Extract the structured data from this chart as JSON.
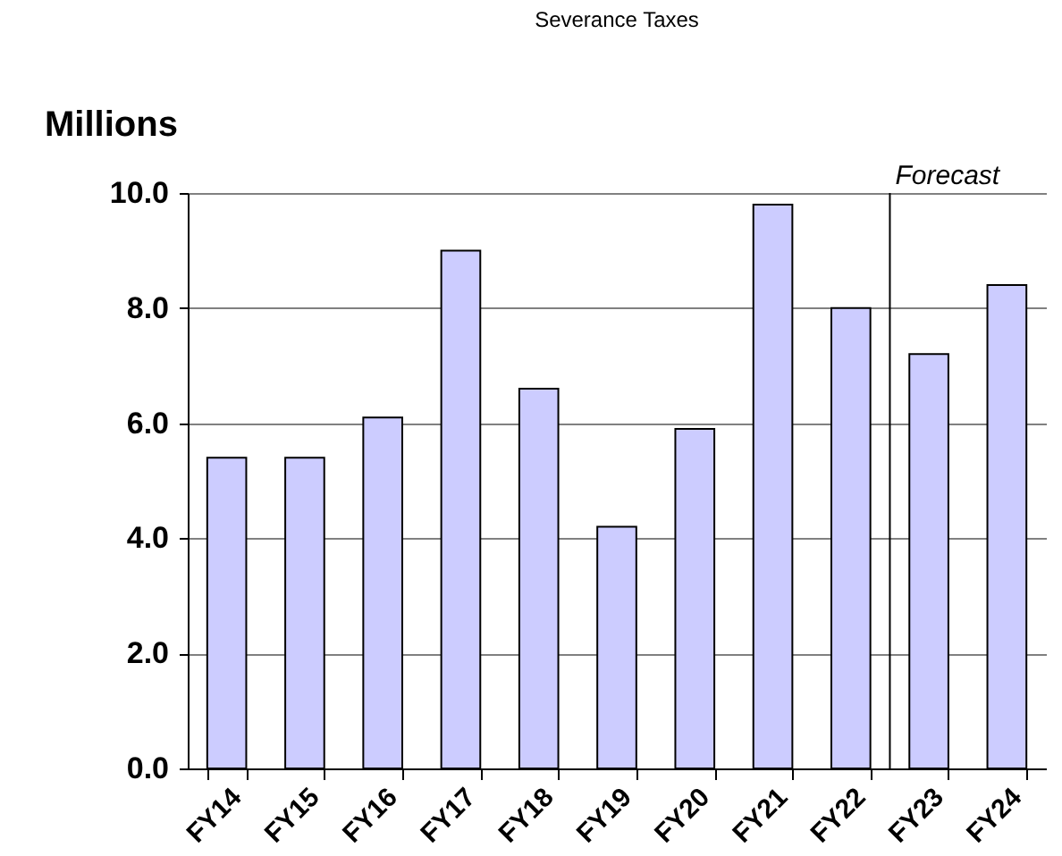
{
  "chart_data": {
    "type": "bar",
    "title": "Severance Taxes",
    "ylabel": "Millions",
    "categories": [
      "FY14",
      "FY15",
      "FY16",
      "FY17",
      "FY18",
      "FY19",
      "FY20",
      "FY21",
      "FY22",
      "FY23",
      "FY24"
    ],
    "values": [
      5.4,
      5.4,
      6.1,
      9.0,
      6.6,
      4.2,
      5.9,
      9.8,
      8.0,
      7.2,
      8.4
    ],
    "color": "#ccccff",
    "ylim": [
      0,
      10
    ],
    "yticks": [
      {
        "value": 0,
        "label": "0.0"
      },
      {
        "value": 2,
        "label": "2.0"
      },
      {
        "value": 4,
        "label": "4.0"
      },
      {
        "value": 6,
        "label": "6.0"
      },
      {
        "value": 8,
        "label": "8.0"
      },
      {
        "value": 10,
        "label": "10.0"
      }
    ],
    "grid": "y",
    "ref_lines": [
      {
        "axis": "x",
        "value": "FY23",
        "label": "Forecast"
      }
    ]
  }
}
